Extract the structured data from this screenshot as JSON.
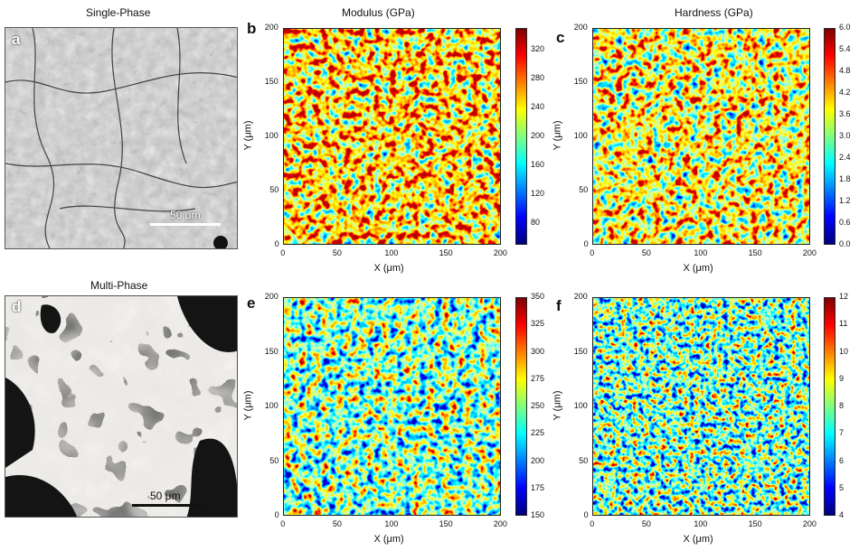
{
  "row1": {
    "image_title": "Single-Phase",
    "map_titles": [
      "Modulus (GPa)",
      "Hardness (GPa)"
    ],
    "letters": [
      "a",
      "b",
      "c"
    ],
    "scale_bar": "50 μm"
  },
  "row2": {
    "image_title": "Multi-Phase",
    "letters": [
      "d",
      "e",
      "f"
    ],
    "scale_bar": "50 μm"
  },
  "axes": {
    "xlabel": "X (μm)",
    "ylabel": "Y (μm)",
    "ticks": [
      "0",
      "50",
      "100",
      "150",
      "200"
    ]
  },
  "colorbars": {
    "b": [
      "80",
      "120",
      "160",
      "200",
      "240",
      "280",
      "320"
    ],
    "c": [
      "0.0",
      "0.6",
      "1.2",
      "1.8",
      "2.4",
      "3.0",
      "3.6",
      "4.2",
      "4.8",
      "5.4",
      "6.0"
    ],
    "e": [
      "150",
      "175",
      "200",
      "225",
      "250",
      "275",
      "300",
      "325",
      "350"
    ],
    "f": [
      "4",
      "5",
      "6",
      "7",
      "8",
      "9",
      "10",
      "11",
      "12"
    ]
  },
  "chart_data": [
    {
      "type": "heatmap",
      "panel": "b",
      "title": "Modulus (GPa)",
      "xlabel": "X (μm)",
      "ylabel": "Y (μm)",
      "xlim": [
        0,
        200
      ],
      "ylim": [
        0,
        200
      ],
      "colorbar_range": [
        50,
        350
      ],
      "typical_value": 250,
      "colormap": "jet"
    },
    {
      "type": "heatmap",
      "panel": "c",
      "title": "Hardness (GPa)",
      "xlabel": "X (μm)",
      "ylabel": "Y (μm)",
      "xlim": [
        0,
        200
      ],
      "ylim": [
        0,
        200
      ],
      "colorbar_range": [
        0,
        6
      ],
      "typical_value": 3.8,
      "colormap": "jet"
    },
    {
      "type": "heatmap",
      "panel": "e",
      "xlabel": "X (μm)",
      "ylabel": "Y (μm)",
      "xlim": [
        0,
        200
      ],
      "ylim": [
        0,
        200
      ],
      "colorbar_range": [
        150,
        350
      ],
      "typical_value": 245,
      "colormap": "jet"
    },
    {
      "type": "heatmap",
      "panel": "f",
      "xlabel": "X (μm)",
      "ylabel": "Y (μm)",
      "xlim": [
        0,
        200
      ],
      "ylim": [
        0,
        200
      ],
      "colorbar_range": [
        4,
        12
      ],
      "typical_value": 7.5,
      "colormap": "jet"
    }
  ],
  "colors": {
    "jet": [
      "#00007f",
      "#0000ff",
      "#007fff",
      "#00ffff",
      "#7fff7f",
      "#ffff00",
      "#ff7f00",
      "#ff0000",
      "#7f0000"
    ]
  }
}
